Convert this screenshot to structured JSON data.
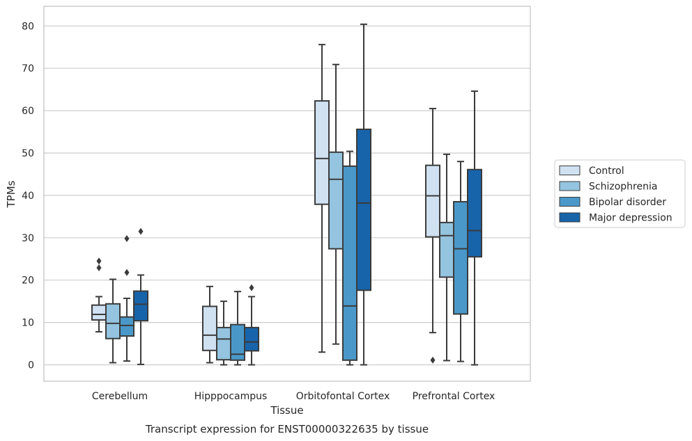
{
  "chart_data": {
    "type": "box",
    "title": "",
    "caption": "Transcript expression for ENST00000322635 by tissue",
    "xlabel": "Tissue",
    "ylabel": "TPMs",
    "ylim": [
      -4,
      84.5
    ],
    "yticks": [
      0,
      10,
      20,
      30,
      40,
      50,
      60,
      70,
      80
    ],
    "grid": "horizontal",
    "legend_position": "right",
    "categories": [
      "Cerebellum",
      "Hipppocampus",
      "Orbitofontal Cortex",
      "Prefrontal Cortex"
    ],
    "series": [
      {
        "name": "Control",
        "color": "#d0e1f2",
        "boxes": [
          {
            "whislo": 7.8,
            "q1": 10.6,
            "med": 11.9,
            "q3": 14.1,
            "whishi": 16.1,
            "fliers": [
              22.9,
              24.5
            ]
          },
          {
            "whislo": 0.5,
            "q1": 3.4,
            "med": 7.0,
            "q3": 13.8,
            "whishi": 18.5,
            "fliers": []
          },
          {
            "whislo": 3.0,
            "q1": 37.9,
            "med": 48.7,
            "q3": 62.3,
            "whishi": 75.6,
            "fliers": []
          },
          {
            "whislo": 7.6,
            "q1": 30.2,
            "med": 39.9,
            "q3": 47.1,
            "whishi": 60.5,
            "fliers": [
              1.1
            ]
          }
        ]
      },
      {
        "name": "Schizophrenia",
        "color": "#94c4df",
        "boxes": [
          {
            "whislo": 0.5,
            "q1": 6.2,
            "med": 9.8,
            "q3": 14.4,
            "whishi": 20.2,
            "fliers": []
          },
          {
            "whislo": 0.0,
            "q1": 1.2,
            "med": 6.1,
            "q3": 8.8,
            "whishi": 15.0,
            "fliers": []
          },
          {
            "whislo": 4.9,
            "q1": 27.4,
            "med": 43.8,
            "q3": 50.2,
            "whishi": 70.9,
            "fliers": []
          },
          {
            "whislo": 1.0,
            "q1": 20.7,
            "med": 30.5,
            "q3": 33.6,
            "whishi": 49.7,
            "fliers": []
          }
        ]
      },
      {
        "name": "Bipolar disorder",
        "color": "#4a98c9",
        "boxes": [
          {
            "whislo": 0.9,
            "q1": 6.8,
            "med": 9.3,
            "q3": 11.3,
            "whishi": 15.7,
            "fliers": [
              21.8,
              29.8
            ]
          },
          {
            "whislo": 0.0,
            "q1": 1.1,
            "med": 2.5,
            "q3": 9.5,
            "whishi": 17.3,
            "fliers": []
          },
          {
            "whislo": 0.0,
            "q1": 1.1,
            "med": 13.9,
            "q3": 46.9,
            "whishi": 50.4,
            "fliers": []
          },
          {
            "whislo": 0.8,
            "q1": 12.0,
            "med": 27.4,
            "q3": 38.5,
            "whishi": 48.0,
            "fliers": []
          }
        ]
      },
      {
        "name": "Major depression",
        "color": "#1764ab",
        "boxes": [
          {
            "whislo": 0.1,
            "q1": 10.4,
            "med": 14.3,
            "q3": 17.4,
            "whishi": 21.2,
            "fliers": [
              31.5
            ]
          },
          {
            "whislo": 0.0,
            "q1": 3.3,
            "med": 5.4,
            "q3": 8.8,
            "whishi": 16.1,
            "fliers": [
              18.2
            ]
          },
          {
            "whislo": 0.0,
            "q1": 17.6,
            "med": 38.2,
            "q3": 55.6,
            "whishi": 80.4,
            "fliers": []
          },
          {
            "whislo": 0.0,
            "q1": 25.5,
            "med": 31.7,
            "q3": 46.1,
            "whishi": 64.6,
            "fliers": []
          }
        ]
      }
    ]
  }
}
